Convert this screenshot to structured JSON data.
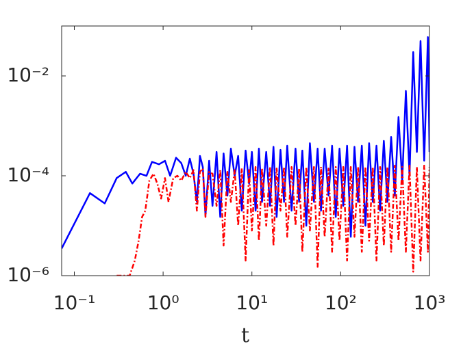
{
  "chart_data": {
    "type": "line",
    "xlabel": "t",
    "xscale": "log",
    "yscale": "log",
    "xlim": [
      0.072,
      1000
    ],
    "ylim": [
      1e-06,
      0.1
    ],
    "xticks": [
      {
        "value": 0.1,
        "label": "10⁻¹"
      },
      {
        "value": 1,
        "label": "10⁰"
      },
      {
        "value": 10,
        "label": "10¹"
      },
      {
        "value": 100,
        "label": "10²"
      },
      {
        "value": 1000,
        "label": "10³"
      }
    ],
    "yticks": [
      {
        "value": 1e-06,
        "label": "10⁻⁶"
      },
      {
        "value": 0.0001,
        "label": "10⁻⁴"
      },
      {
        "value": 0.01,
        "label": "10⁻²"
      }
    ],
    "series": [
      {
        "color": "#0000ff",
        "linestyle": "solid",
        "x": [
          0.072,
          0.15,
          0.22,
          0.3,
          0.38,
          0.45,
          0.55,
          0.65,
          0.75,
          0.9,
          1.05,
          1.2,
          1.4,
          1.6,
          1.8,
          2.0,
          2.2,
          2.4,
          2.6,
          2.8,
          3.0,
          3.3,
          3.6,
          4.0,
          4.4,
          4.8,
          5.3,
          5.8,
          6.4,
          7.0,
          7.7,
          8.5,
          9.3,
          10,
          11,
          12,
          13,
          14.5,
          16,
          17.5,
          19,
          21,
          23,
          25,
          28,
          31,
          34,
          37,
          41,
          45,
          50,
          55,
          60,
          66,
          73,
          80,
          88,
          97,
          107,
          118,
          130,
          143,
          157,
          173,
          190,
          209,
          230,
          253,
          278,
          306,
          336,
          370,
          407,
          448,
          493,
          542,
          596,
          656,
          721,
          793,
          872,
          960,
          1000
        ],
        "values": [
          3.5e-06,
          4.5e-05,
          2.8e-05,
          9e-05,
          0.00012,
          7e-05,
          0.00011,
          0.0001,
          0.00019,
          0.00017,
          0.0002,
          0.0001,
          0.00023,
          0.00018,
          0.0001,
          0.00022,
          0.00011,
          3e-05,
          0.00025,
          0.00015,
          1.6e-05,
          0.0002,
          2.5e-05,
          0.0003,
          1.5e-05,
          0.00028,
          4e-05,
          0.00035,
          0.0001,
          0.00025,
          2e-05,
          0.00032,
          7e-05,
          0.0003,
          2e-05,
          0.00035,
          3e-05,
          0.0003,
          2.5e-05,
          0.00038,
          1.5e-05,
          0.00033,
          3e-05,
          0.0004,
          2e-05,
          0.00035,
          3e-05,
          0.00032,
          1e-05,
          0.00045,
          3e-05,
          0.00035,
          2e-05,
          0.00035,
          4e-05,
          0.0004,
          1.5e-05,
          0.00035,
          2.5e-05,
          0.0004,
          6e-06,
          0.00038,
          3e-05,
          0.0004,
          1e-05,
          0.00045,
          3e-05,
          0.0004,
          2e-05,
          0.0005,
          3e-05,
          0.0006,
          4e-05,
          0.0015,
          8e-05,
          0.005,
          0.0001,
          0.03,
          0.0003,
          0.05,
          0.0002,
          0.06,
          0.0003
        ]
      },
      {
        "color": "#ff0000",
        "linestyle": "dashdot",
        "x": [
          0.3,
          0.36,
          0.42,
          0.48,
          0.53,
          0.58,
          0.63,
          0.7,
          0.78,
          0.86,
          0.95,
          1.05,
          1.15,
          1.3,
          1.45,
          1.6,
          1.8,
          2.0,
          2.2,
          2.4,
          2.6,
          2.8,
          3.0,
          3.3,
          3.6,
          4.0,
          4.4,
          4.8,
          5.3,
          5.8,
          6.4,
          7.0,
          7.7,
          8.5,
          9.3,
          10,
          11,
          12,
          13,
          14.5,
          16,
          17.5,
          19,
          21,
          23,
          25,
          28,
          31,
          34,
          37,
          41,
          45,
          50,
          55,
          60,
          66,
          73,
          80,
          88,
          97,
          107,
          118,
          130,
          143,
          157,
          173,
          190,
          209,
          230,
          253,
          278,
          306,
          336,
          370,
          407,
          448,
          493,
          542,
          596,
          656,
          721,
          793,
          872,
          960,
          1000
        ],
        "values": [
          1e-06,
          1e-06,
          1e-06,
          2e-06,
          5e-06,
          1.5e-05,
          2e-05,
          8e-05,
          0.00011,
          7e-05,
          3.5e-05,
          9e-05,
          3e-05,
          9e-05,
          0.0001,
          8e-05,
          0.00012,
          9e-05,
          0.00013,
          2e-05,
          0.00012,
          0.00014,
          1.5e-05,
          0.00012,
          0.00011,
          2.5e-05,
          0.00013,
          4e-06,
          0.00012,
          3e-05,
          0.00013,
          1e-05,
          0.00014,
          2e-06,
          0.00013,
          8e-06,
          0.00015,
          5e-06,
          0.00014,
          1e-05,
          0.00015,
          4e-06,
          0.00014,
          2e-05,
          0.00015,
          6e-06,
          0.00015,
          1e-05,
          0.00014,
          3e-06,
          0.00015,
          8e-06,
          0.00015,
          1.5e-06,
          0.00015,
          6e-06,
          0.00014,
          3e-06,
          0.00015,
          5e-06,
          0.00015,
          2e-06,
          0.00015,
          6e-06,
          0.00015,
          3e-06,
          0.00015,
          5e-06,
          0.00015,
          2e-06,
          0.00015,
          4e-06,
          0.00015,
          3e-06,
          0.00016,
          5e-06,
          0.00015,
          3e-06,
          0.00016,
          1.2e-06,
          0.00015,
          2e-06,
          0.00016,
          3e-06,
          0.00015
        ]
      }
    ]
  }
}
